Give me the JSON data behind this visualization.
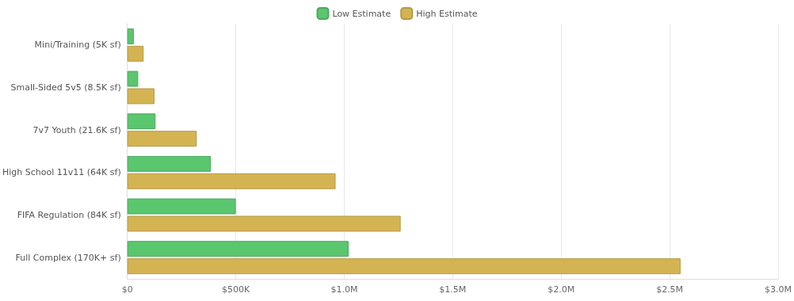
{
  "chart_data": {
    "type": "bar",
    "orientation": "horizontal",
    "categories": [
      "Mini/Training (5K sf)",
      "Small-Sided 5v5 (8.5K sf)",
      "7v7 Youth (21.6K sf)",
      "High School 11v11 (64K sf)",
      "FIFA Regulation (84K sf)",
      "Full Complex (170K+ sf)"
    ],
    "series": [
      {
        "name": "Low Estimate",
        "color": "#5ac66e",
        "values": [
          30000,
          50000,
          130000,
          385000,
          500000,
          1020000
        ]
      },
      {
        "name": "High Estimate",
        "color": "#d4b452",
        "values": [
          75000,
          125000,
          320000,
          960000,
          1260000,
          2550000
        ]
      }
    ],
    "xlim": [
      0,
      3000000
    ],
    "xticks": [
      {
        "value": 0,
        "label": "$0"
      },
      {
        "value": 500000,
        "label": "$500K"
      },
      {
        "value": 1000000,
        "label": "$1.0M"
      },
      {
        "value": 1500000,
        "label": "$1.5M"
      },
      {
        "value": 2000000,
        "label": "$2.0M"
      },
      {
        "value": 2500000,
        "label": "$2.5M"
      },
      {
        "value": 3000000,
        "label": "$3.0M"
      }
    ],
    "grid": "x",
    "legend": "top"
  }
}
